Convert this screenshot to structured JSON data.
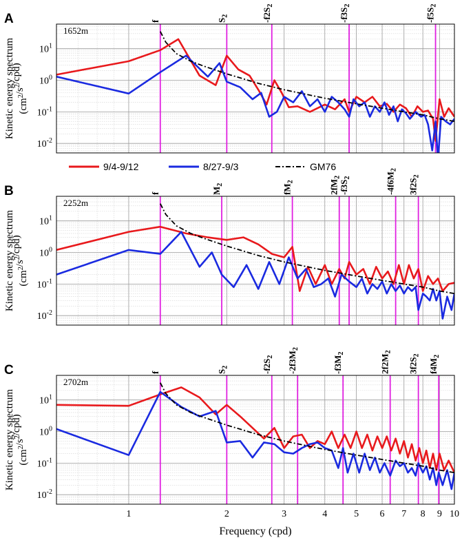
{
  "chart_data": [
    {
      "type": "line",
      "panel": "A",
      "depth_label": "1652m",
      "xscale": "log",
      "yscale": "log",
      "xlim": [
        0.6,
        10
      ],
      "ylim": [
        0.005,
        60
      ],
      "ylabel_line1": "Kinetic energy spectrum",
      "ylabel_line2": "(cm²/s²/cpd)",
      "xlabel": "Frequency (cpd)",
      "x_ticks": [
        1,
        2,
        3,
        4,
        5,
        6,
        7,
        8,
        9,
        10
      ],
      "x_tick_labels": [
        "",
        "",
        "",
        "",
        "",
        "",
        "",
        "",
        "",
        ""
      ],
      "y_ticks": [
        0.01,
        0.1,
        1,
        10
      ],
      "y_tick_base": "10",
      "y_tick_exp": [
        "-2",
        "-1",
        "0",
        "1"
      ],
      "tidal_lines": [
        {
          "label": "f",
          "x": 1.25
        },
        {
          "label": "S2",
          "x": 2.0
        },
        {
          "label": "-f2S2",
          "x": 2.75
        },
        {
          "label": "-f3S2",
          "x": 4.75
        },
        {
          "label": "-f5S2",
          "x": 8.75
        }
      ],
      "series": [
        {
          "name": "9/4-9/12",
          "color": "#e8191c",
          "x": [
            0.6,
            1.0,
            1.25,
            1.42,
            1.65,
            1.85,
            2.0,
            2.17,
            2.35,
            2.5,
            2.65,
            2.8,
            2.95,
            3.1,
            3.3,
            3.6,
            4.0,
            4.3,
            4.6,
            4.75,
            5.0,
            5.3,
            5.6,
            5.9,
            6.2,
            6.5,
            6.8,
            7.1,
            7.4,
            7.7,
            8.0,
            8.3,
            8.6,
            8.75,
            9.0,
            9.3,
            9.6,
            10.0
          ],
          "values": [
            1.5,
            4.0,
            9.0,
            20.0,
            1.4,
            0.7,
            6.0,
            2.2,
            1.4,
            0.5,
            0.17,
            1.0,
            0.4,
            0.14,
            0.15,
            0.1,
            0.17,
            0.12,
            0.25,
            0.1,
            0.3,
            0.2,
            0.3,
            0.15,
            0.18,
            0.1,
            0.17,
            0.13,
            0.07,
            0.15,
            0.1,
            0.11,
            0.06,
            0.012,
            0.25,
            0.07,
            0.13,
            0.07
          ]
        },
        {
          "name": "8/27-9/3",
          "color": "#1a2ae0",
          "x": [
            0.6,
            1.0,
            1.25,
            1.5,
            1.75,
            1.9,
            2.0,
            2.2,
            2.4,
            2.55,
            2.7,
            2.85,
            3.0,
            3.2,
            3.4,
            3.6,
            3.8,
            4.0,
            4.2,
            4.4,
            4.6,
            4.75,
            4.9,
            5.1,
            5.3,
            5.5,
            5.7,
            5.9,
            6.1,
            6.3,
            6.5,
            6.7,
            6.9,
            7.1,
            7.3,
            7.6,
            7.9,
            8.1,
            8.3,
            8.55,
            8.75,
            8.9,
            9.1,
            9.4,
            9.7,
            10.0
          ],
          "values": [
            1.3,
            0.38,
            1.8,
            6.0,
            1.3,
            3.5,
            0.9,
            0.6,
            0.25,
            0.4,
            0.07,
            0.1,
            0.3,
            0.2,
            0.45,
            0.15,
            0.25,
            0.1,
            0.3,
            0.2,
            0.12,
            0.07,
            0.25,
            0.15,
            0.2,
            0.07,
            0.15,
            0.1,
            0.2,
            0.08,
            0.15,
            0.05,
            0.12,
            0.09,
            0.06,
            0.1,
            0.07,
            0.08,
            0.04,
            0.006,
            0.05,
            0.003,
            0.07,
            0.05,
            0.04,
            0.06
          ]
        },
        {
          "name": "GM76",
          "color": "#000000",
          "dashed": true,
          "x": [
            1.25,
            1.3,
            1.4,
            1.55,
            1.7,
            2.0,
            2.5,
            3.0,
            4.0,
            5.0,
            6.0,
            7.0,
            8.0,
            9.0,
            10.0
          ],
          "values": [
            35.0,
            16.0,
            7.0,
            4.0,
            2.8,
            1.6,
            0.8,
            0.5,
            0.27,
            0.18,
            0.13,
            0.1,
            0.08,
            0.06,
            0.05
          ]
        }
      ]
    },
    {
      "type": "line",
      "panel": "B",
      "depth_label": "2252m",
      "xscale": "log",
      "yscale": "log",
      "xlim": [
        0.6,
        10
      ],
      "ylim": [
        0.005,
        60
      ],
      "ylabel_line1": "Kinetic energy spectrum",
      "ylabel_line2": "(cm²/s²/cpd)",
      "xlabel": "Frequency (cpd)",
      "x_ticks": [
        1,
        2,
        3,
        4,
        5,
        6,
        7,
        8,
        9,
        10
      ],
      "x_tick_labels": [
        "",
        "",
        "",
        "",
        "",
        "",
        "",
        "",
        "",
        ""
      ],
      "y_ticks": [
        0.01,
        0.1,
        1,
        10
      ],
      "y_tick_base": "10",
      "y_tick_exp": [
        "-2",
        "-1",
        "0",
        "1"
      ],
      "tidal_lines": [
        {
          "label": "f",
          "x": 1.25
        },
        {
          "label": "M2",
          "x": 1.93
        },
        {
          "label": "fM2",
          "x": 3.18
        },
        {
          "label": "2fM2",
          "x": 4.43
        },
        {
          "label": "-f3S2",
          "x": 4.75
        },
        {
          "label": "-4f6M2",
          "x": 6.6
        },
        {
          "label": "3f2S2",
          "x": 7.75
        }
      ],
      "series": [
        {
          "name": "9/4-9/12",
          "color": "#e8191c",
          "x": [
            0.6,
            1.0,
            1.25,
            1.5,
            1.75,
            2.0,
            2.25,
            2.5,
            2.75,
            3.0,
            3.18,
            3.35,
            3.55,
            3.75,
            4.0,
            4.2,
            4.43,
            4.6,
            4.75,
            5.0,
            5.25,
            5.5,
            5.75,
            6.0,
            6.25,
            6.5,
            6.75,
            7.0,
            7.25,
            7.5,
            7.75,
            8.0,
            8.3,
            8.6,
            8.9,
            9.2,
            9.6,
            10.0
          ],
          "values": [
            1.2,
            4.5,
            6.5,
            4.0,
            3.0,
            2.5,
            3.0,
            1.8,
            0.9,
            0.7,
            1.5,
            0.06,
            0.35,
            0.1,
            0.4,
            0.1,
            0.3,
            0.15,
            0.5,
            0.2,
            0.3,
            0.1,
            0.35,
            0.15,
            0.25,
            0.1,
            0.4,
            0.1,
            0.4,
            0.15,
            0.3,
            0.06,
            0.18,
            0.1,
            0.15,
            0.06,
            0.1,
            0.11
          ]
        },
        {
          "name": "8/27-9/3",
          "color": "#1a2ae0",
          "x": [
            0.6,
            1.0,
            1.25,
            1.45,
            1.65,
            1.8,
            1.93,
            2.1,
            2.3,
            2.5,
            2.7,
            2.9,
            3.1,
            3.3,
            3.5,
            3.7,
            3.9,
            4.1,
            4.3,
            4.5,
            4.75,
            5.0,
            5.2,
            5.4,
            5.6,
            5.8,
            6.0,
            6.2,
            6.4,
            6.6,
            6.8,
            7.0,
            7.2,
            7.4,
            7.6,
            7.75,
            8.0,
            8.2,
            8.4,
            8.6,
            8.8,
            9.0,
            9.2,
            9.5,
            9.8,
            10.0
          ],
          "values": [
            0.2,
            1.2,
            0.9,
            4.5,
            0.35,
            1.0,
            0.2,
            0.08,
            0.4,
            0.07,
            0.5,
            0.1,
            0.7,
            0.15,
            0.3,
            0.08,
            0.1,
            0.15,
            0.04,
            0.2,
            0.12,
            0.08,
            0.15,
            0.05,
            0.1,
            0.07,
            0.12,
            0.05,
            0.1,
            0.06,
            0.09,
            0.05,
            0.08,
            0.06,
            0.08,
            0.015,
            0.05,
            0.04,
            0.03,
            0.07,
            0.03,
            0.06,
            0.008,
            0.04,
            0.015,
            0.05
          ]
        },
        {
          "name": "GM76",
          "color": "#000000",
          "dashed": true,
          "x": [
            1.25,
            1.3,
            1.4,
            1.55,
            1.7,
            2.0,
            2.5,
            3.0,
            4.0,
            5.0,
            6.0,
            7.0,
            8.0,
            9.0,
            10.0
          ],
          "values": [
            35.0,
            16.0,
            7.0,
            4.0,
            2.8,
            1.6,
            0.8,
            0.5,
            0.27,
            0.18,
            0.13,
            0.1,
            0.08,
            0.06,
            0.05
          ]
        }
      ]
    },
    {
      "type": "line",
      "panel": "C",
      "depth_label": "2702m",
      "xscale": "log",
      "yscale": "log",
      "xlim": [
        0.6,
        10
      ],
      "ylim": [
        0.005,
        60
      ],
      "ylabel_line1": "Kinetic energy spectrum",
      "ylabel_line2": "(cm²/s²/cpd)",
      "xlabel": "Frequency (cpd)",
      "x_ticks": [
        1,
        2,
        3,
        4,
        5,
        6,
        7,
        8,
        9,
        10
      ],
      "x_tick_labels": [
        "1",
        "2",
        "3",
        "4",
        "5",
        "6",
        "7",
        "8",
        "9",
        "10"
      ],
      "y_ticks": [
        0.01,
        0.1,
        1,
        10
      ],
      "y_tick_base": "10",
      "y_tick_exp": [
        "-2",
        "-1",
        "0",
        "1"
      ],
      "tidal_lines": [
        {
          "label": "f",
          "x": 1.25
        },
        {
          "label": "S2",
          "x": 2.0
        },
        {
          "label": "-f2S2",
          "x": 2.75
        },
        {
          "label": "-2f3M2",
          "x": 3.3
        },
        {
          "label": "-f3M2",
          "x": 4.55
        },
        {
          "label": "2f2M2",
          "x": 6.35
        },
        {
          "label": "3f2S2",
          "x": 7.75
        },
        {
          "label": "f4M2",
          "x": 8.95
        }
      ],
      "series": [
        {
          "name": "9/4-9/12",
          "color": "#e8191c",
          "x": [
            0.6,
            1.0,
            1.25,
            1.45,
            1.65,
            1.85,
            2.0,
            2.2,
            2.4,
            2.6,
            2.8,
            3.0,
            3.2,
            3.4,
            3.6,
            3.8,
            4.0,
            4.2,
            4.4,
            4.6,
            4.8,
            5.0,
            5.2,
            5.4,
            5.6,
            5.8,
            6.0,
            6.2,
            6.4,
            6.6,
            6.8,
            7.0,
            7.2,
            7.4,
            7.6,
            7.8,
            8.0,
            8.2,
            8.4,
            8.6,
            8.8,
            9.0,
            9.3,
            9.6,
            10.0
          ],
          "values": [
            7.0,
            6.5,
            15.0,
            25.0,
            12.0,
            3.5,
            7.0,
            3.0,
            1.3,
            0.6,
            1.3,
            0.3,
            0.7,
            0.8,
            0.3,
            0.5,
            0.4,
            1.0,
            0.3,
            0.8,
            0.3,
            1.0,
            0.3,
            0.8,
            0.25,
            0.7,
            0.3,
            0.7,
            0.25,
            0.6,
            0.2,
            0.5,
            0.15,
            0.4,
            0.12,
            0.3,
            0.1,
            0.25,
            0.07,
            0.2,
            0.06,
            0.2,
            0.06,
            0.12,
            0.05
          ]
        },
        {
          "name": "8/27-9/3",
          "color": "#1a2ae0",
          "x": [
            0.6,
            1.0,
            1.25,
            1.45,
            1.65,
            1.85,
            2.0,
            2.2,
            2.4,
            2.6,
            2.8,
            3.0,
            3.2,
            3.4,
            3.6,
            3.8,
            4.0,
            4.2,
            4.4,
            4.55,
            4.7,
            4.9,
            5.1,
            5.3,
            5.5,
            5.7,
            5.9,
            6.1,
            6.35,
            6.6,
            6.8,
            7.0,
            7.2,
            7.4,
            7.6,
            7.75,
            8.0,
            8.2,
            8.4,
            8.6,
            8.8,
            8.95,
            9.2,
            9.5,
            9.8,
            10.0
          ],
          "values": [
            1.2,
            0.18,
            18.0,
            6.0,
            3.0,
            4.5,
            0.45,
            0.5,
            0.15,
            0.45,
            0.4,
            0.22,
            0.2,
            0.3,
            0.4,
            0.45,
            0.3,
            0.25,
            0.07,
            0.3,
            0.05,
            0.2,
            0.05,
            0.2,
            0.06,
            0.15,
            0.05,
            0.1,
            0.04,
            0.12,
            0.08,
            0.1,
            0.05,
            0.07,
            0.04,
            0.1,
            0.05,
            0.08,
            0.03,
            0.07,
            0.02,
            0.05,
            0.02,
            0.06,
            0.015,
            0.05
          ]
        },
        {
          "name": "GM76",
          "color": "#000000",
          "dashed": true,
          "x": [
            1.25,
            1.3,
            1.4,
            1.55,
            1.7,
            2.0,
            2.5,
            3.0,
            4.0,
            5.0,
            6.0,
            7.0,
            8.0,
            9.0,
            10.0
          ],
          "values": [
            35.0,
            16.0,
            7.0,
            4.0,
            2.8,
            1.6,
            0.8,
            0.5,
            0.27,
            0.18,
            0.13,
            0.1,
            0.08,
            0.06,
            0.05
          ]
        }
      ]
    }
  ],
  "legend": {
    "items": [
      {
        "label": "9/4-9/12",
        "color": "#e8191c",
        "dashed": false
      },
      {
        "label": "8/27-9/3",
        "color": "#1a2ae0",
        "dashed": false
      },
      {
        "label": "GM76",
        "color": "#000000",
        "dashed": true
      }
    ]
  },
  "tidal_line_color": "#e020e0",
  "xlabel": "Frequency (cpd)"
}
